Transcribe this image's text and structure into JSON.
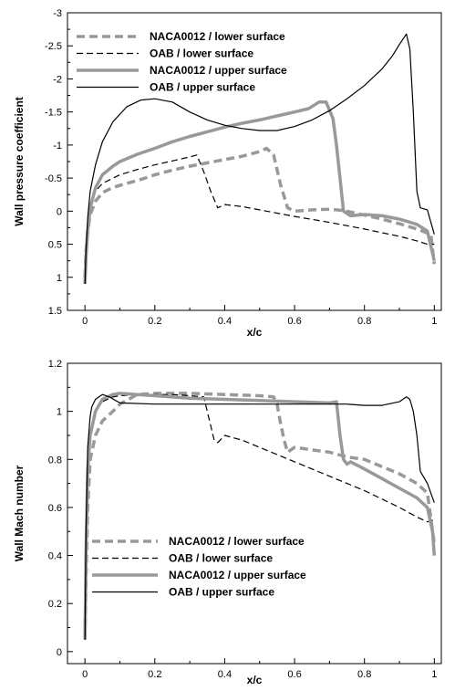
{
  "chart_data": [
    {
      "type": "line",
      "xlabel": "x/c",
      "ylabel": "Wall pressure coefficient",
      "xlim": [
        -0.05,
        1.02
      ],
      "ylim": [
        1.5,
        -3
      ],
      "y_inverted": true,
      "xticks": [
        0,
        0.2,
        0.4,
        0.6,
        0.8,
        1
      ],
      "xtick_labels": [
        "0",
        "0.2",
        "0.4",
        "0.6",
        "0.8",
        "1"
      ],
      "yticks": [
        -3,
        -2.5,
        -2,
        -1.5,
        -1,
        -0.5,
        0,
        0.5,
        1,
        1.5
      ],
      "ytick_labels": [
        "-3",
        "-2.5",
        "-2",
        "-1.5",
        "-1",
        "-0.5",
        "0",
        "0.5",
        "1",
        "1.5"
      ],
      "grid": false,
      "legend_position": "top",
      "series": [
        {
          "name": "NACA0012 / lower surface",
          "style": "thick-dashed",
          "color": "#999999",
          "x": [
            0,
            0.003,
            0.008,
            0.015,
            0.03,
            0.05,
            0.08,
            0.12,
            0.16,
            0.2,
            0.25,
            0.3,
            0.35,
            0.4,
            0.45,
            0.5,
            0.52,
            0.54,
            0.56,
            0.58,
            0.6,
            0.65,
            0.7,
            0.74,
            0.8,
            0.85,
            0.9,
            0.95,
            0.99,
            1.0
          ],
          "y": [
            1.0,
            0.6,
            0.3,
            0.05,
            -0.15,
            -0.28,
            -0.36,
            -0.42,
            -0.48,
            -0.55,
            -0.62,
            -0.68,
            -0.73,
            -0.78,
            -0.83,
            -0.9,
            -0.95,
            -0.85,
            -0.4,
            -0.05,
            0.0,
            -0.02,
            -0.03,
            -0.01,
            0.06,
            0.12,
            0.19,
            0.27,
            0.35,
            0.8
          ]
        },
        {
          "name": "OAB / lower surface",
          "style": "thin-dashed",
          "color": "#000000",
          "x": [
            0,
            0.003,
            0.008,
            0.015,
            0.03,
            0.05,
            0.1,
            0.15,
            0.2,
            0.25,
            0.3,
            0.32,
            0.34,
            0.36,
            0.38,
            0.4,
            0.45,
            0.5,
            0.6,
            0.7,
            0.8,
            0.9,
            0.95,
            0.98,
            1.0
          ],
          "y": [
            1.0,
            0.55,
            0.2,
            -0.1,
            -0.3,
            -0.42,
            -0.55,
            -0.63,
            -0.7,
            -0.76,
            -0.82,
            -0.85,
            -0.6,
            -0.3,
            -0.05,
            -0.1,
            -0.07,
            -0.02,
            0.08,
            0.17,
            0.27,
            0.38,
            0.45,
            0.5,
            0.5
          ]
        },
        {
          "name": "NACA0012 / upper surface",
          "style": "thick-solid",
          "color": "#999999",
          "x": [
            0,
            0.003,
            0.008,
            0.015,
            0.03,
            0.05,
            0.08,
            0.1,
            0.15,
            0.2,
            0.25,
            0.3,
            0.35,
            0.4,
            0.45,
            0.5,
            0.55,
            0.6,
            0.64,
            0.67,
            0.69,
            0.71,
            0.72,
            0.73,
            0.74,
            0.76,
            0.8,
            0.85,
            0.9,
            0.95,
            0.98,
            1.0
          ],
          "y": [
            1.1,
            0.7,
            0.3,
            -0.05,
            -0.35,
            -0.55,
            -0.68,
            -0.75,
            -0.86,
            -0.95,
            -1.05,
            -1.13,
            -1.2,
            -1.27,
            -1.33,
            -1.38,
            -1.44,
            -1.5,
            -1.55,
            -1.65,
            -1.65,
            -1.4,
            -1.0,
            -0.5,
            0.0,
            0.07,
            0.05,
            0.07,
            0.12,
            0.2,
            0.3,
            0.75
          ]
        },
        {
          "name": "OAB / upper surface",
          "style": "thin-solid",
          "color": "#000000",
          "x": [
            0,
            0.003,
            0.008,
            0.015,
            0.03,
            0.05,
            0.08,
            0.12,
            0.16,
            0.2,
            0.25,
            0.3,
            0.35,
            0.4,
            0.45,
            0.5,
            0.55,
            0.6,
            0.65,
            0.7,
            0.75,
            0.8,
            0.85,
            0.88,
            0.9,
            0.92,
            0.93,
            0.94,
            0.95,
            0.96,
            0.98,
            1.0
          ],
          "y": [
            1.1,
            0.6,
            0.1,
            -0.3,
            -0.7,
            -1.05,
            -1.35,
            -1.58,
            -1.68,
            -1.7,
            -1.65,
            -1.5,
            -1.38,
            -1.3,
            -1.25,
            -1.22,
            -1.22,
            -1.28,
            -1.38,
            -1.52,
            -1.7,
            -1.9,
            -2.15,
            -2.35,
            -2.52,
            -2.68,
            -2.45,
            -1.5,
            -0.3,
            -0.05,
            -0.02,
            0.35
          ]
        }
      ]
    },
    {
      "type": "line",
      "xlabel": "x/c",
      "ylabel": "Wall Mach number",
      "xlim": [
        -0.05,
        1.02
      ],
      "ylim": [
        -0.05,
        1.2
      ],
      "xticks": [
        0,
        0.2,
        0.4,
        0.6,
        0.8,
        1
      ],
      "xtick_labels": [
        "0",
        "0.2",
        "0.4",
        "0.6",
        "0.8",
        "1"
      ],
      "yticks": [
        0,
        0.2,
        0.4,
        0.6,
        0.8,
        1,
        1.2
      ],
      "ytick_labels": [
        "0",
        "0.2",
        "0.4",
        "0.6",
        "0.8",
        "1",
        "1.2"
      ],
      "grid": false,
      "legend_position": "bottom",
      "series": [
        {
          "name": "NACA0012 / lower surface",
          "style": "thick-dashed",
          "color": "#999999",
          "x": [
            0,
            0.003,
            0.008,
            0.015,
            0.03,
            0.05,
            0.08,
            0.1,
            0.15,
            0.2,
            0.3,
            0.4,
            0.5,
            0.54,
            0.55,
            0.56,
            0.57,
            0.58,
            0.6,
            0.65,
            0.7,
            0.75,
            0.8,
            0.85,
            0.9,
            0.95,
            0.98,
            1.0
          ],
          "y": [
            0.05,
            0.3,
            0.6,
            0.8,
            0.9,
            0.96,
            1.0,
            1.03,
            1.07,
            1.075,
            1.075,
            1.07,
            1.065,
            1.06,
            1.03,
            0.95,
            0.88,
            0.83,
            0.85,
            0.84,
            0.83,
            0.81,
            0.8,
            0.77,
            0.74,
            0.7,
            0.66,
            0.45
          ]
        },
        {
          "name": "OAB / lower surface",
          "style": "thin-dashed",
          "color": "#000000",
          "x": [
            0,
            0.003,
            0.008,
            0.015,
            0.03,
            0.05,
            0.08,
            0.1,
            0.15,
            0.2,
            0.25,
            0.3,
            0.34,
            0.35,
            0.36,
            0.37,
            0.38,
            0.4,
            0.45,
            0.5,
            0.6,
            0.7,
            0.8,
            0.9,
            0.95,
            0.98,
            1.0
          ],
          "y": [
            0.05,
            0.35,
            0.7,
            0.9,
            1.0,
            1.04,
            1.06,
            1.065,
            1.07,
            1.07,
            1.07,
            1.065,
            1.06,
            1.0,
            0.94,
            0.88,
            0.87,
            0.9,
            0.88,
            0.85,
            0.79,
            0.73,
            0.67,
            0.6,
            0.56,
            0.54,
            0.55
          ]
        },
        {
          "name": "NACA0012 / upper surface",
          "style": "thick-solid",
          "color": "#999999",
          "x": [
            0,
            0.003,
            0.008,
            0.015,
            0.03,
            0.05,
            0.08,
            0.1,
            0.15,
            0.2,
            0.3,
            0.4,
            0.5,
            0.6,
            0.7,
            0.72,
            0.73,
            0.74,
            0.75,
            0.76,
            0.8,
            0.85,
            0.9,
            0.95,
            0.98,
            0.995,
            1.0
          ],
          "y": [
            0.05,
            0.4,
            0.75,
            0.9,
            1.0,
            1.05,
            1.07,
            1.075,
            1.07,
            1.065,
            1.055,
            1.05,
            1.045,
            1.04,
            1.035,
            1.04,
            0.9,
            0.8,
            0.78,
            0.79,
            0.76,
            0.72,
            0.68,
            0.64,
            0.6,
            0.5,
            0.4
          ]
        },
        {
          "name": "OAB / upper surface",
          "style": "thin-solid",
          "color": "#000000",
          "x": [
            0,
            0.003,
            0.008,
            0.015,
            0.02,
            0.03,
            0.04,
            0.05,
            0.07,
            0.1,
            0.2,
            0.3,
            0.4,
            0.5,
            0.6,
            0.7,
            0.75,
            0.8,
            0.85,
            0.9,
            0.92,
            0.93,
            0.94,
            0.95,
            0.96,
            0.98,
            1.0
          ],
          "y": [
            0.05,
            0.5,
            0.85,
            0.98,
            1.02,
            1.05,
            1.06,
            1.07,
            1.06,
            1.035,
            1.03,
            1.03,
            1.03,
            1.03,
            1.03,
            1.03,
            1.03,
            1.025,
            1.025,
            1.04,
            1.06,
            1.05,
            1.0,
            0.9,
            0.75,
            0.7,
            0.62
          ]
        }
      ]
    }
  ]
}
